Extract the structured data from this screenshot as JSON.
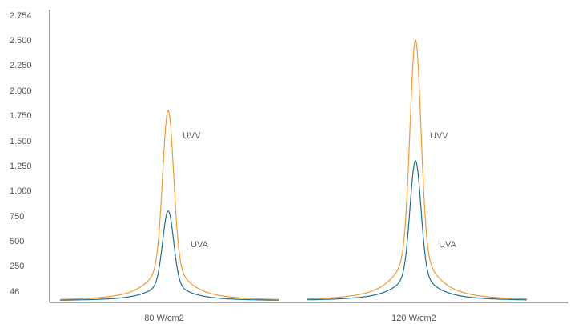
{
  "chart_data": {
    "type": "line",
    "title": "",
    "xlabel": "",
    "ylabel": "",
    "ylim": [
      0,
      2754
    ],
    "y_ticks": [
      46,
      250,
      500,
      750,
      1000,
      1250,
      1500,
      1750,
      2000,
      2250,
      2500,
      2754
    ],
    "y_tick_labels": [
      "46",
      "250",
      "500",
      "750",
      "1.000",
      "1.250",
      "1.500",
      "1.750",
      "2.000",
      "2.250",
      "2.500",
      "2.754"
    ],
    "grid": false,
    "legend": "none",
    "categories": [
      "80 W/cm2",
      "120 W/cm2"
    ],
    "series": [
      {
        "name": "UVV",
        "color": "#f29a2e",
        "peaks": [
          1800,
          2500
        ],
        "peak_labels": [
          "UVV",
          "UVV"
        ]
      },
      {
        "name": "UVA",
        "color": "#1f6f8b",
        "peaks": [
          800,
          1300
        ],
        "peak_labels": [
          "UVA",
          "UVA"
        ]
      }
    ]
  }
}
